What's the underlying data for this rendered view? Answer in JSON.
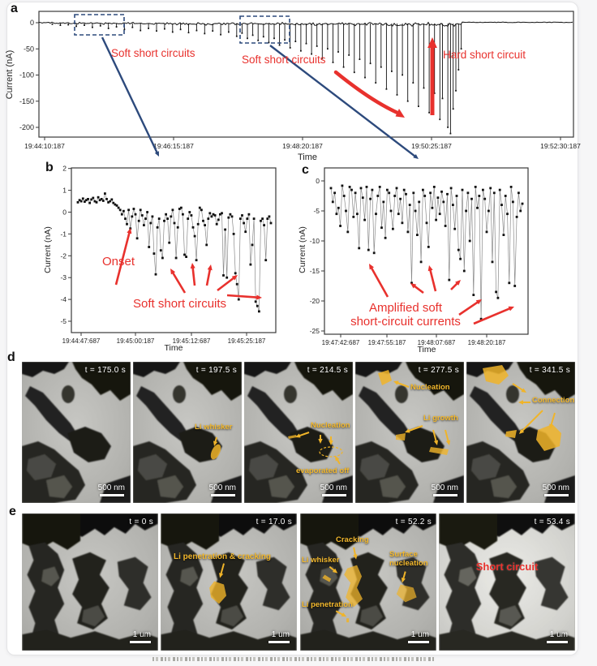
{
  "figure": {
    "panel_a": {
      "label": "a",
      "annotations": {
        "soft_short_circuits_left": "Soft short circuits",
        "soft_short_circuits_mid": "Soft short circuits",
        "hard_short_circuit": "Hard short circuit"
      }
    },
    "panel_b": {
      "label": "b",
      "annotations": {
        "onset": "Onset",
        "soft_short_circuits": "Soft short circuits"
      }
    },
    "panel_c": {
      "label": "c",
      "annotations": {
        "amplified": "Amplified soft\nshort-circuit currents"
      }
    },
    "panel_d": {
      "label": "d",
      "scale_label": "500 nm",
      "frames": [
        {
          "time": "t = 175.0 s",
          "annotations": {}
        },
        {
          "time": "t = 197.5 s",
          "annotations": {
            "li_whisker": "Li whisker"
          }
        },
        {
          "time": "t = 214.5 s",
          "annotations": {
            "nucleation": "Nucleation",
            "evaporated_off": "evaporated off"
          }
        },
        {
          "time": "t = 277.5 s",
          "annotations": {
            "nucleation": "Nucleation",
            "li_growth": "Li growth"
          }
        },
        {
          "time": "t = 341.5 s",
          "annotations": {
            "connection": "Connection"
          }
        }
      ]
    },
    "panel_e": {
      "label": "e",
      "scale_label": "1 um",
      "frames": [
        {
          "time": "t = 0 s",
          "annotations": {}
        },
        {
          "time": "t = 17.0 s",
          "annotations": {
            "li_penetration_cracking": "Li penetration & cracking"
          }
        },
        {
          "time": "t = 52.2 s",
          "annotations": {
            "cracking": "Cracking",
            "li_whisker": "Li whisker",
            "surface_nucleation": "Surface\nnucleation",
            "li_penetration": "Li penetration"
          }
        },
        {
          "time": "t = 53.4 s",
          "annotations": {
            "short_circuit": "Short circuit"
          }
        }
      ]
    }
  },
  "chart_data": [
    {
      "id": "panel_a",
      "type": "line",
      "xlabel": "Time",
      "ylabel": "Current (nA)",
      "xticklabels": [
        "19:44:10:187",
        "19:46:15:187",
        "19:48:20:187",
        "19:50:25:187",
        "19:52:30:187"
      ],
      "ytick_values": [
        0,
        -50,
        -100,
        -150,
        -200
      ],
      "ylim": [
        -220,
        20
      ],
      "baseline_nA": 0,
      "description": "Downward current spikes: soft short circuits grow in magnitude until a hard short circuit, after which current returns to ~0.",
      "spike_events": [
        [
          0.025,
          3
        ],
        [
          0.04,
          5
        ],
        [
          0.055,
          4
        ],
        [
          0.07,
          7
        ],
        [
          0.085,
          5
        ],
        [
          0.1,
          9
        ],
        [
          0.115,
          6
        ],
        [
          0.13,
          11
        ],
        [
          0.145,
          8
        ],
        [
          0.16,
          13
        ],
        [
          0.175,
          9
        ],
        [
          0.19,
          15
        ],
        [
          0.205,
          11
        ],
        [
          0.22,
          16
        ],
        [
          0.235,
          12
        ],
        [
          0.25,
          18
        ],
        [
          0.265,
          13
        ],
        [
          0.28,
          19
        ],
        [
          0.295,
          15
        ],
        [
          0.31,
          21
        ],
        [
          0.325,
          16
        ],
        [
          0.34,
          23
        ],
        [
          0.355,
          18
        ],
        [
          0.37,
          26
        ],
        [
          0.38,
          20
        ],
        [
          0.39,
          30
        ],
        [
          0.4,
          24
        ],
        [
          0.41,
          34
        ],
        [
          0.42,
          27
        ],
        [
          0.43,
          38
        ],
        [
          0.44,
          30
        ],
        [
          0.45,
          43
        ],
        [
          0.46,
          33
        ],
        [
          0.47,
          48
        ],
        [
          0.48,
          36
        ],
        [
          0.49,
          54
        ],
        [
          0.5,
          40
        ],
        [
          0.51,
          60
        ],
        [
          0.52,
          45
        ],
        [
          0.53,
          68
        ],
        [
          0.54,
          50
        ],
        [
          0.55,
          76
        ],
        [
          0.56,
          56
        ],
        [
          0.57,
          85
        ],
        [
          0.58,
          62
        ],
        [
          0.59,
          95
        ],
        [
          0.6,
          70
        ],
        [
          0.61,
          105
        ],
        [
          0.62,
          78
        ],
        [
          0.63,
          115
        ],
        [
          0.64,
          85
        ],
        [
          0.65,
          127
        ],
        [
          0.66,
          93
        ],
        [
          0.67,
          138
        ],
        [
          0.68,
          100
        ],
        [
          0.69,
          150
        ],
        [
          0.7,
          115
        ],
        [
          0.71,
          160
        ],
        [
          0.72,
          125
        ],
        [
          0.73,
          172
        ],
        [
          0.74,
          135
        ],
        [
          0.75,
          185
        ],
        [
          0.755,
          145
        ],
        [
          0.765,
          200
        ],
        [
          0.77,
          212
        ],
        [
          0.775,
          165
        ],
        [
          0.78,
          130
        ],
        [
          0.785,
          90
        ],
        [
          0.79,
          50
        ]
      ]
    },
    {
      "id": "panel_b",
      "type": "scatter-line",
      "xlabel": "Time",
      "ylabel": "Current (nA)",
      "xticklabels": [
        "19:44:47:687",
        "19:45:00:187",
        "19:45:12:687",
        "19:45:25:187"
      ],
      "ytick_values": [
        2,
        1,
        0,
        -1,
        -2,
        -3,
        -4,
        -5
      ],
      "ylim": [
        -5.5,
        2
      ],
      "y_values": [
        0.45,
        0.55,
        0.5,
        0.62,
        0.48,
        0.55,
        0.6,
        0.42,
        0.58,
        0.65,
        0.5,
        0.45,
        0.68,
        0.55,
        0.6,
        0.52,
        0.85,
        0.6,
        0.45,
        0.5,
        0.58,
        0.42,
        0.35,
        0.3,
        0.2,
        0.1,
        -0.1,
        0.05,
        -0.3,
        -0.55,
        0.1,
        -0.75,
        -0.2,
        0.15,
        -0.1,
        -1.2,
        -0.4,
        0.1,
        -0.15,
        -0.6,
        -0.3,
        0.0,
        -1.6,
        -0.5,
        -0.2,
        -1.9,
        -2.85,
        -0.7,
        -0.3,
        -1.75,
        -2.1,
        -0.4,
        -0.1,
        -0.3,
        -1.4,
        -0.2,
        0.1,
        -0.5,
        -2.1,
        -0.7,
        0.15,
        0.2,
        -0.1,
        -1.95,
        -2.05,
        -0.3,
        0.0,
        -0.15,
        -0.7,
        -1.1,
        -2.2,
        -0.55,
        0.2,
        0.1,
        -0.4,
        -0.6,
        -1.5,
        -0.3,
        -0.05,
        -0.2,
        -0.1,
        -0.15,
        -0.55,
        -0.35,
        -0.1,
        -0.05,
        -2.9,
        -0.8,
        -3.0,
        -0.25,
        -0.1,
        -0.2,
        -1.0,
        -2.8,
        -3.3,
        -4.0,
        -0.3,
        -0.15,
        -0.5,
        -0.9,
        -0.3,
        -0.1,
        -2.4,
        -1.5,
        -0.3,
        -4.1,
        -4.3,
        -4.55,
        -0.4,
        -0.3,
        -0.6,
        -2.2,
        -0.3,
        -0.2,
        -0.5
      ]
    },
    {
      "id": "panel_c",
      "type": "scatter-line",
      "xlabel": "Time",
      "ylabel": "Current (nA)",
      "xticklabels": [
        "19:47:42:687",
        "19:47:55:187",
        "19:48:07:687",
        "19:48:20:187"
      ],
      "ytick_values": [
        0,
        -5,
        -10,
        -15,
        -20,
        -25
      ],
      "ylim": [
        -25,
        0.5
      ],
      "y_values": [
        -1.2,
        -3.5,
        -2.0,
        -5.5,
        -4.5,
        -7.5,
        -0.8,
        -2.5,
        -5.0,
        -8.5,
        -1.0,
        -1.5,
        -6.0,
        -2.0,
        -5.5,
        -11.2,
        -1.2,
        -2.8,
        -6.5,
        -1.0,
        -11.5,
        -3.0,
        -1.5,
        -12.0,
        -5.5,
        -2.5,
        -1.0,
        -7.8,
        -3.5,
        -9.5,
        -1.5,
        -2.0,
        -5.0,
        -8.0,
        -2.5,
        -1.2,
        -5.5,
        -3.0,
        -7.0,
        -1.5,
        -2.2,
        -8.5,
        -4.0,
        -17.0,
        -2.0,
        -5.0,
        -9.0,
        -3.5,
        -13.5,
        -1.5,
        -2.5,
        -7.0,
        -11.0,
        -2.0,
        -4.5,
        -1.0,
        -6.5,
        -2.8,
        -5.5,
        -1.8,
        -3.5,
        -7.5,
        -2.2,
        -16.5,
        -1.2,
        -4.0,
        -8.0,
        -2.5,
        -11.5,
        -13.0,
        -1.5,
        -15.0,
        -5.0,
        -2.0,
        -10.0,
        -3.0,
        -19.0,
        -1.0,
        -4.5,
        -2.5,
        -23.0,
        -1.5,
        -3.0,
        -8.5,
        -5.0,
        -1.2,
        -13.5,
        -2.0,
        -18.5,
        -19.5,
        -1.5,
        -4.0,
        -9.0,
        -2.5,
        -5.5,
        -17.0,
        -1.0,
        -3.5,
        -17.5,
        -6.0,
        -2.0,
        -5.0,
        -3.8
      ]
    }
  ],
  "colors": {
    "annotation_red": "#e8312d",
    "arrow_navy": "#2d4a7c",
    "annotation_yellow": "#f0b429",
    "trace_black": "#111111",
    "card_bg": "#ffffff",
    "page_bg": "#f6f6f7"
  }
}
